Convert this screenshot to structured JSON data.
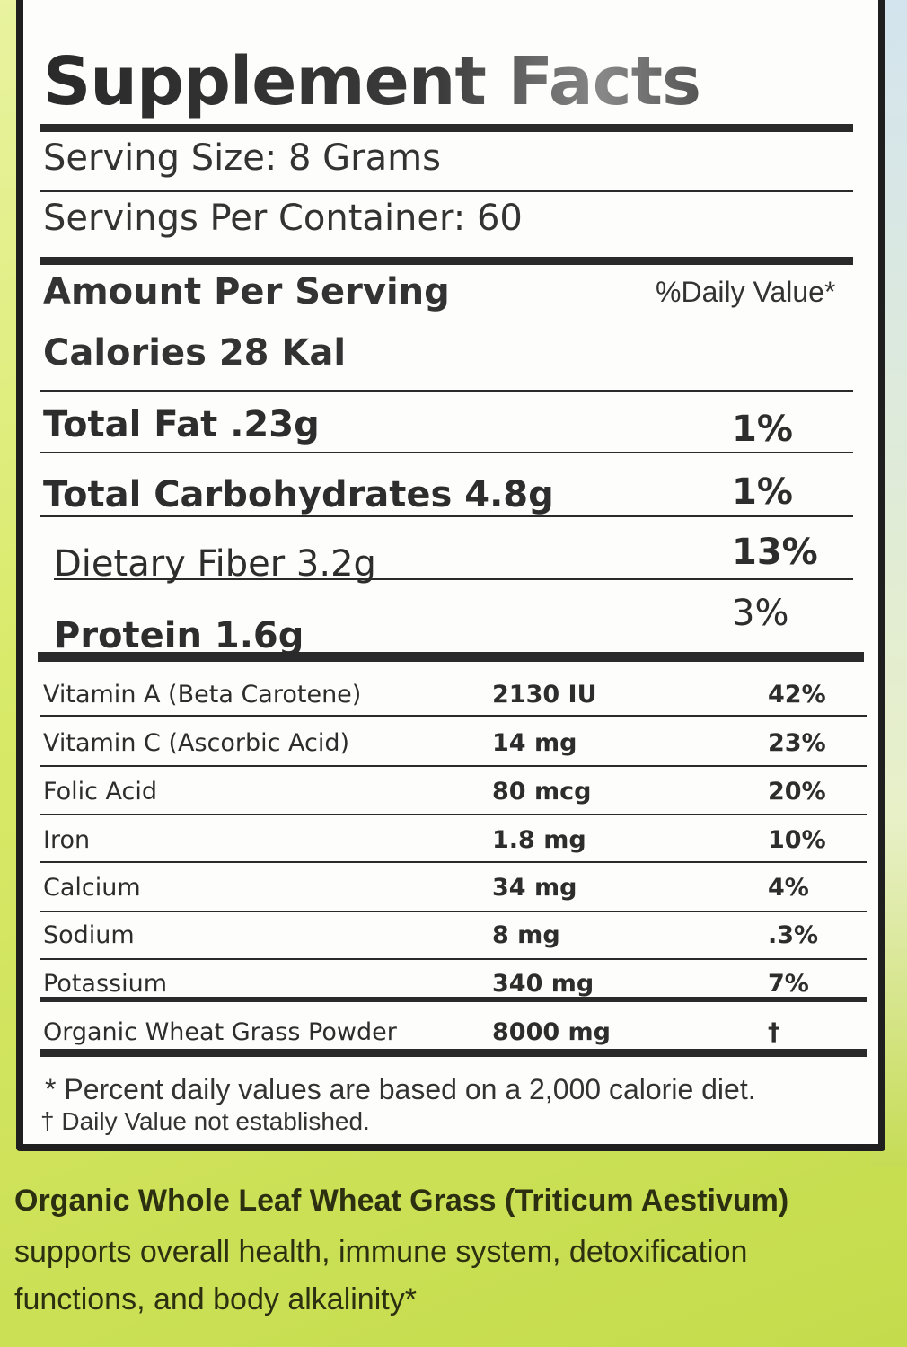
{
  "title": "Supplement Facts",
  "serving_size": "Serving Size: 8 Grams",
  "servings_per_container": "Servings Per Container: 60",
  "amount_per_serving": "Amount Per Serving",
  "daily_value_header": "%Daily Value*",
  "calories": "Calories 28 Kal",
  "macros": [
    {
      "label": "Total Fat .23g",
      "dv": "1%"
    },
    {
      "label": "Total Carbohydrates 4.8g",
      "dv": "1%"
    },
    {
      "label": "Dietary Fiber 3.2g",
      "dv": "13%"
    },
    {
      "label": "Protein 1.6g",
      "dv": "3%"
    }
  ],
  "nutrients": [
    {
      "name": "Vitamin A (Beta Carotene)",
      "amount": "2130 IU",
      "dv": "42%"
    },
    {
      "name": "Vitamin C (Ascorbic Acid)",
      "amount": "14 mg",
      "dv": "23%"
    },
    {
      "name": "Folic Acid",
      "amount": "80 mcg",
      "dv": "20%"
    },
    {
      "name": "Iron",
      "amount": "1.8 mg",
      "dv": "10%"
    },
    {
      "name": "Calcium",
      "amount": "34 mg",
      "dv": "4%"
    },
    {
      "name": "Sodium",
      "amount": "8 mg",
      "dv": ".3%"
    },
    {
      "name": "Potassium",
      "amount": "340 mg",
      "dv": "7%"
    },
    {
      "name": "Organic Wheat Grass Powder",
      "amount": "8000 mg",
      "dv": "†"
    }
  ],
  "footnotes": {
    "percent": "* Percent daily values are based on a 2,000 calorie diet.",
    "not_established": "† Daily Value not established."
  },
  "description": {
    "heading": "Organic Whole Leaf  Wheat Grass (Triticum Aestivum)",
    "line1": "supports overall health, immune system, detoxification",
    "line2": "functions, and body alkalinity*"
  }
}
